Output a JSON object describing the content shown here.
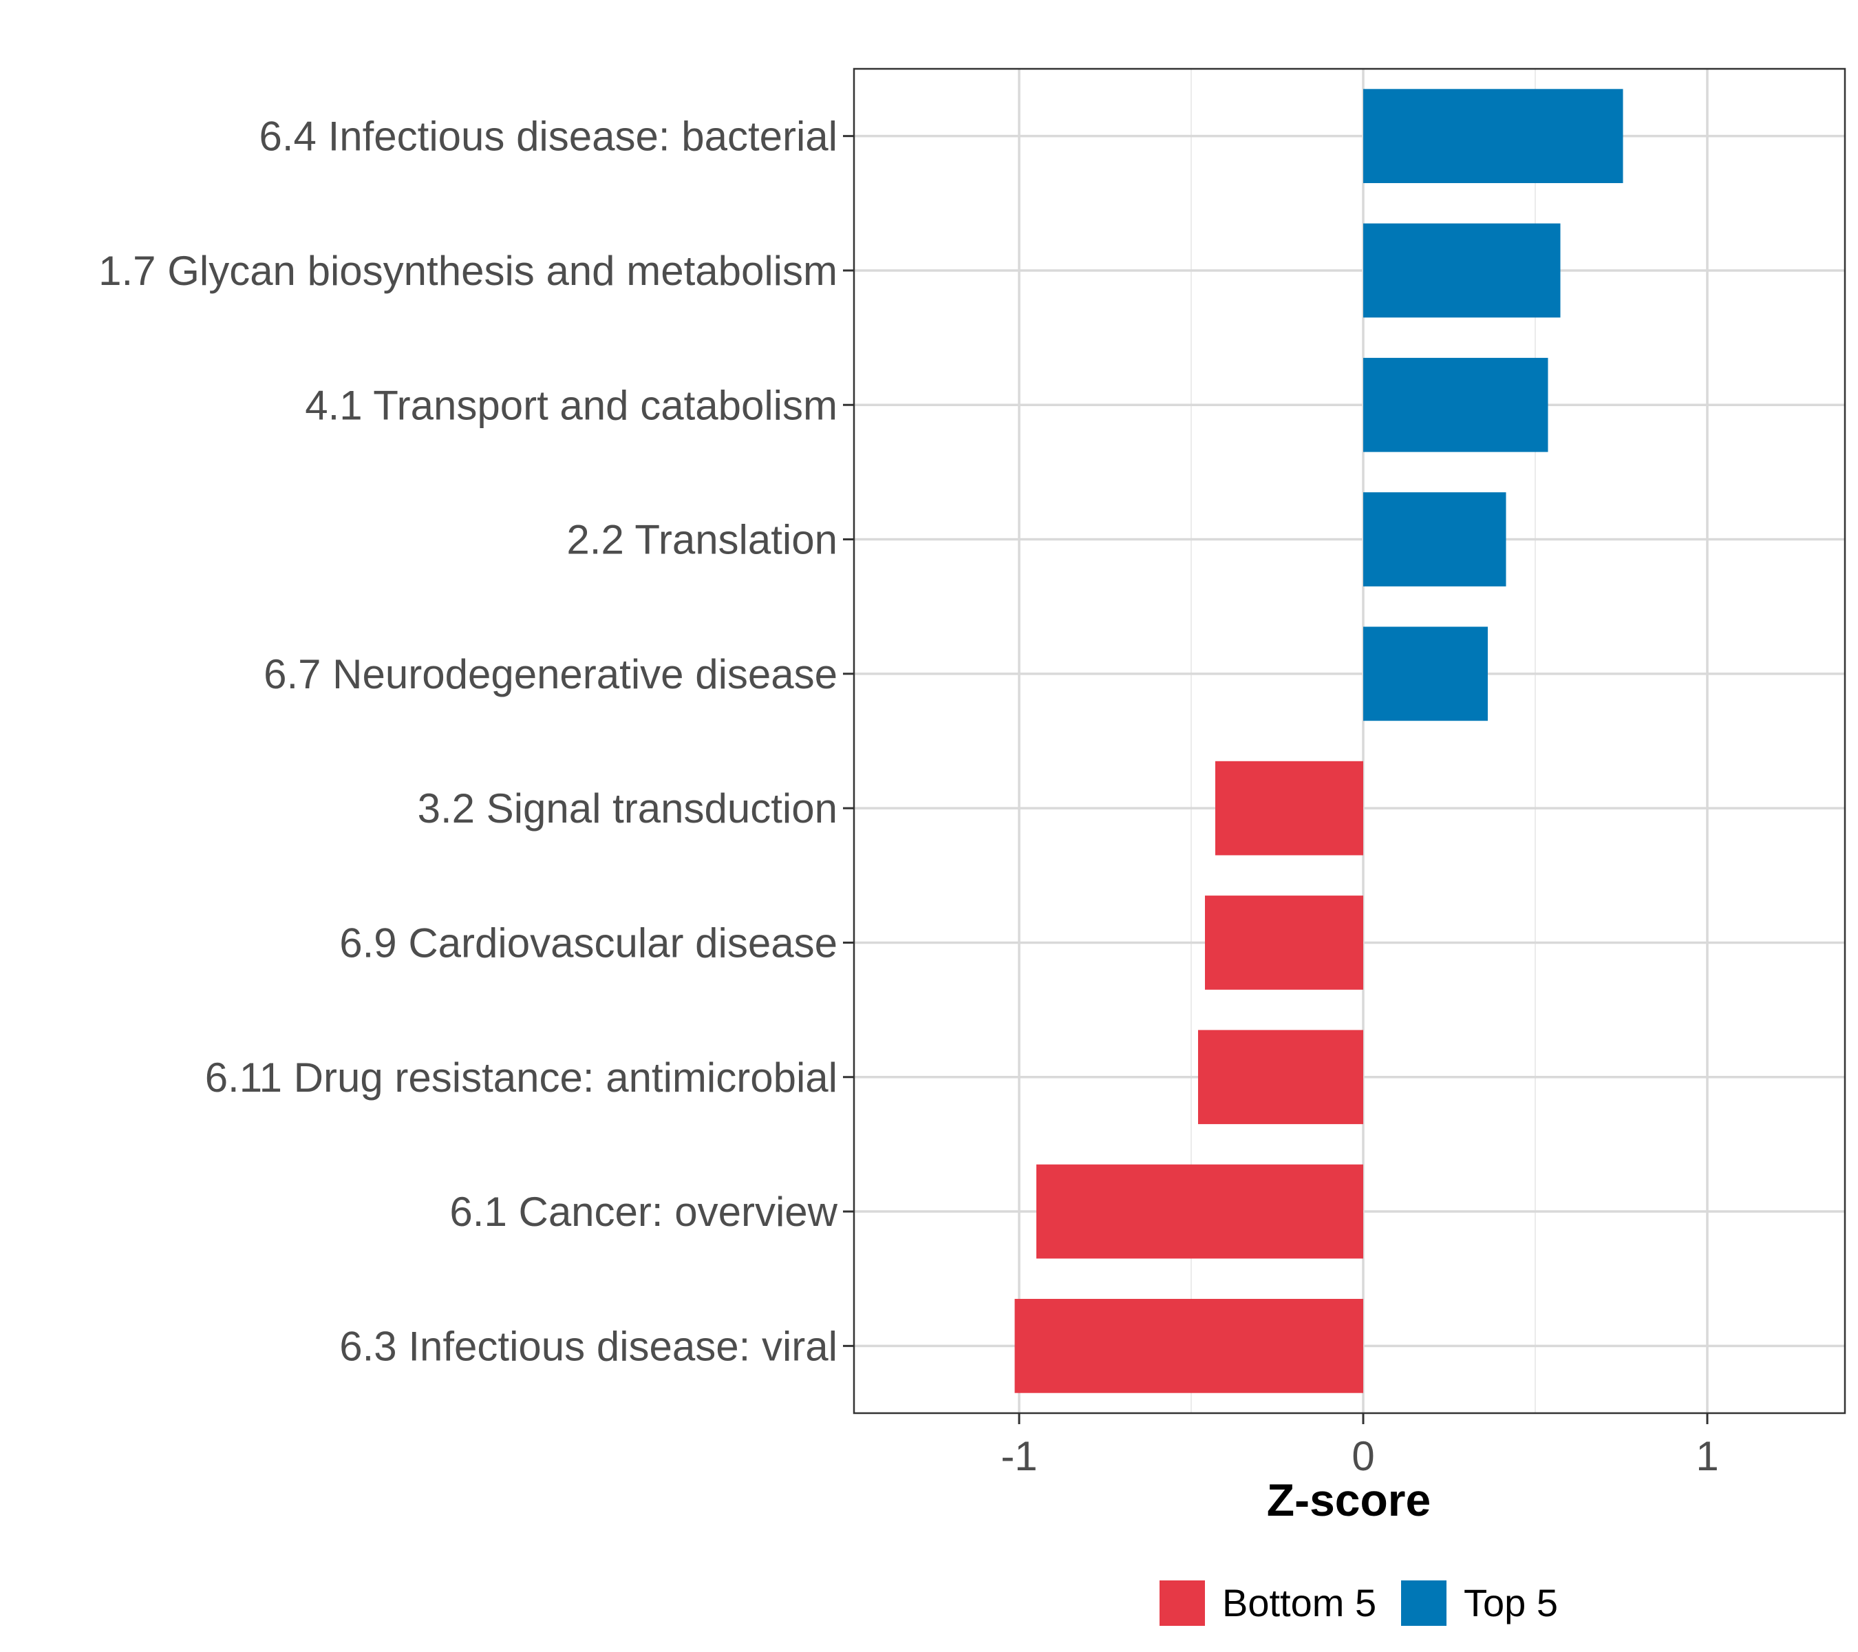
{
  "chart_data": {
    "type": "bar",
    "orientation": "horizontal",
    "title": "",
    "xlabel": "Z-score",
    "ylabel": "",
    "xlim": [
      -1.48,
      1.4
    ],
    "xticks": [
      -1,
      0,
      1
    ],
    "xtick_labels": [
      "-1",
      "0",
      "1"
    ],
    "grid": true,
    "legend_position": "bottom",
    "categories": [
      "6.4 Infectious disease: bacterial",
      "1.7 Glycan biosynthesis and metabolism",
      "4.1 Transport and catabolism",
      "2.2 Translation",
      "6.7 Neurodegenerative disease",
      "3.2 Signal transduction",
      "6.9 Cardiovascular disease",
      "6.11 Drug resistance: antimicrobial",
      "6.1 Cancer: overview",
      "6.3 Infectious disease: viral"
    ],
    "values": [
      0.755,
      0.573,
      0.537,
      0.415,
      0.362,
      -0.43,
      -0.46,
      -0.48,
      -0.95,
      -1.013
    ],
    "groups": [
      "Top 5",
      "Top 5",
      "Top 5",
      "Top 5",
      "Top 5",
      "Bottom 5",
      "Bottom 5",
      "Bottom 5",
      "Bottom 5",
      "Bottom 5"
    ],
    "legend": [
      {
        "name": "Bottom 5",
        "color": "#e63946"
      },
      {
        "name": "Top 5",
        "color": "#0077b6"
      }
    ]
  }
}
